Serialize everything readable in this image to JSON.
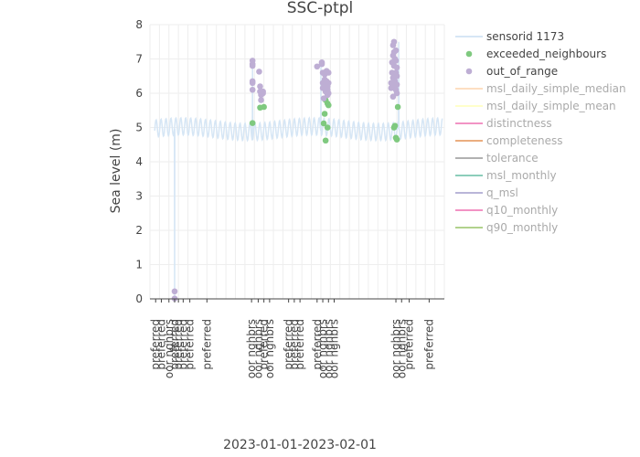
{
  "chart_data": {
    "type": "scatter",
    "title": "SSC-ptpl",
    "xlabel": "2023-01-01-2023-02-01",
    "ylabel": "Sea level (m)",
    "ylim": [
      0,
      8
    ],
    "yticks": [
      0,
      1,
      2,
      3,
      4,
      5,
      6,
      7,
      8
    ],
    "xrange_days": [
      0,
      31
    ],
    "grid": true,
    "legend_position": "right",
    "colors": {
      "sensor": "#d6e6f5",
      "exceeded": "#7fc97f",
      "oor": "#beaed4",
      "zero_line": "#444444",
      "grid": "#eeeeee"
    },
    "x_tick_labels": [
      {
        "x": 0.6,
        "label": "preferred"
      },
      {
        "x": 1.2,
        "label": "preferred"
      },
      {
        "x": 2.0,
        "label": "oor nghbrs"
      },
      {
        "x": 2.6,
        "label": "preferred"
      },
      {
        "x": 3.0,
        "label": "preferred"
      },
      {
        "x": 3.5,
        "label": "preferred"
      },
      {
        "x": 4.2,
        "label": "preferred"
      },
      {
        "x": 6.0,
        "label": "preferred"
      },
      {
        "x": 10.7,
        "label": "oor nghbrs"
      },
      {
        "x": 11.4,
        "label": "oor nghbrs"
      },
      {
        "x": 12.0,
        "label": "preferred"
      },
      {
        "x": 12.6,
        "label": "oor nghbrs"
      },
      {
        "x": 14.6,
        "label": "preferred"
      },
      {
        "x": 15.2,
        "label": "preferred"
      },
      {
        "x": 15.8,
        "label": "preferred"
      },
      {
        "x": 17.6,
        "label": "preferred"
      },
      {
        "x": 18.2,
        "label": "oor nghbrs"
      },
      {
        "x": 18.8,
        "label": "oor nghbrs"
      },
      {
        "x": 19.4,
        "label": "oor nghbrs"
      },
      {
        "x": 25.9,
        "label": "oor nghbrs"
      },
      {
        "x": 26.5,
        "label": "oor nghbrs"
      },
      {
        "x": 27.3,
        "label": "preferred"
      },
      {
        "x": 29.4,
        "label": "preferred"
      }
    ],
    "series": [
      {
        "name": "sensorid 1173",
        "kind": "line",
        "baseline": 4.95,
        "amplitude": 0.25,
        "period_days": 0.52,
        "dropout": [
          {
            "x": 2.6,
            "y": 0.0
          }
        ],
        "segment_highs": [
          {
            "x": 10.8,
            "y": 6.9
          },
          {
            "x": 18.0,
            "y": 6.8
          },
          {
            "x": 26.2,
            "y": 7.5
          }
        ]
      },
      {
        "name": "exceeded_neighbours",
        "kind": "points",
        "points": [
          {
            "x": 10.8,
            "y": 5.13
          },
          {
            "x": 11.6,
            "y": 5.58
          },
          {
            "x": 12.0,
            "y": 5.6
          },
          {
            "x": 18.3,
            "y": 5.12
          },
          {
            "x": 18.4,
            "y": 5.4
          },
          {
            "x": 18.5,
            "y": 4.62
          },
          {
            "x": 18.5,
            "y": 5.8
          },
          {
            "x": 18.7,
            "y": 5.7
          },
          {
            "x": 18.7,
            "y": 5.0
          },
          {
            "x": 18.8,
            "y": 5.65
          },
          {
            "x": 25.7,
            "y": 5.0
          },
          {
            "x": 25.8,
            "y": 5.05
          },
          {
            "x": 25.9,
            "y": 4.7
          },
          {
            "x": 26.0,
            "y": 4.65
          },
          {
            "x": 26.1,
            "y": 5.6
          }
        ]
      },
      {
        "name": "out_of_range",
        "kind": "points",
        "points": [
          {
            "x": 2.6,
            "y": 0.22
          },
          {
            "x": 2.6,
            "y": 0.01
          },
          {
            "x": 10.8,
            "y": 6.95
          },
          {
            "x": 10.8,
            "y": 6.85
          },
          {
            "x": 10.8,
            "y": 6.8
          },
          {
            "x": 10.8,
            "y": 6.35
          },
          {
            "x": 10.8,
            "y": 6.3
          },
          {
            "x": 10.8,
            "y": 6.1
          },
          {
            "x": 11.5,
            "y": 6.63
          },
          {
            "x": 11.6,
            "y": 6.2
          },
          {
            "x": 11.6,
            "y": 6.05
          },
          {
            "x": 11.7,
            "y": 5.95
          },
          {
            "x": 11.7,
            "y": 5.8
          },
          {
            "x": 11.9,
            "y": 6.05
          },
          {
            "x": 11.9,
            "y": 6.0
          },
          {
            "x": 17.6,
            "y": 6.78
          },
          {
            "x": 18.1,
            "y": 6.9
          },
          {
            "x": 18.1,
            "y": 6.85
          },
          {
            "x": 18.2,
            "y": 6.6
          },
          {
            "x": 18.2,
            "y": 6.3
          },
          {
            "x": 18.2,
            "y": 6.15
          },
          {
            "x": 18.3,
            "y": 5.85
          },
          {
            "x": 18.4,
            "y": 6.55
          },
          {
            "x": 18.4,
            "y": 6.4
          },
          {
            "x": 18.5,
            "y": 6.25
          },
          {
            "x": 18.5,
            "y": 6.05
          },
          {
            "x": 18.6,
            "y": 6.65
          },
          {
            "x": 18.6,
            "y": 6.35
          },
          {
            "x": 18.7,
            "y": 6.2
          },
          {
            "x": 18.7,
            "y": 6.1
          },
          {
            "x": 18.7,
            "y": 5.95
          },
          {
            "x": 18.8,
            "y": 6.6
          },
          {
            "x": 18.8,
            "y": 6.3
          },
          {
            "x": 18.8,
            "y": 6.0
          },
          {
            "x": 25.4,
            "y": 6.3
          },
          {
            "x": 25.4,
            "y": 6.15
          },
          {
            "x": 25.5,
            "y": 6.9
          },
          {
            "x": 25.5,
            "y": 6.6
          },
          {
            "x": 25.6,
            "y": 7.4
          },
          {
            "x": 25.6,
            "y": 7.1
          },
          {
            "x": 25.6,
            "y": 6.45
          },
          {
            "x": 25.6,
            "y": 5.9
          },
          {
            "x": 25.7,
            "y": 7.5
          },
          {
            "x": 25.7,
            "y": 7.2
          },
          {
            "x": 25.7,
            "y": 6.8
          },
          {
            "x": 25.7,
            "y": 6.2
          },
          {
            "x": 25.8,
            "y": 7.0
          },
          {
            "x": 25.8,
            "y": 6.55
          },
          {
            "x": 25.8,
            "y": 6.35
          },
          {
            "x": 25.9,
            "y": 7.25
          },
          {
            "x": 25.9,
            "y": 6.95
          },
          {
            "x": 25.9,
            "y": 6.6
          },
          {
            "x": 25.9,
            "y": 6.1
          },
          {
            "x": 26.0,
            "y": 6.75
          },
          {
            "x": 26.0,
            "y": 6.5
          },
          {
            "x": 26.0,
            "y": 6.25
          },
          {
            "x": 26.0,
            "y": 6.0
          }
        ]
      },
      {
        "name": "msl_daily_simple_median",
        "kind": "legend-only",
        "color": "#fdc086"
      },
      {
        "name": "msl_daily_simple_mean",
        "kind": "legend-only",
        "color": "#ffff99"
      },
      {
        "name": "distinctness",
        "kind": "legend-only",
        "color": "#e7298a"
      },
      {
        "name": "completeness",
        "kind": "legend-only",
        "color": "#d95f02"
      },
      {
        "name": "tolerance",
        "kind": "legend-only",
        "color": "#666666"
      },
      {
        "name": "msl_monthly",
        "kind": "legend-only",
        "color": "#1b9e77"
      },
      {
        "name": "q_msl",
        "kind": "legend-only",
        "color": "#7570b3"
      },
      {
        "name": "q10_monthly",
        "kind": "legend-only",
        "color": "#e7298a"
      },
      {
        "name": "q90_monthly",
        "kind": "legend-only",
        "color": "#66a61e"
      }
    ]
  }
}
